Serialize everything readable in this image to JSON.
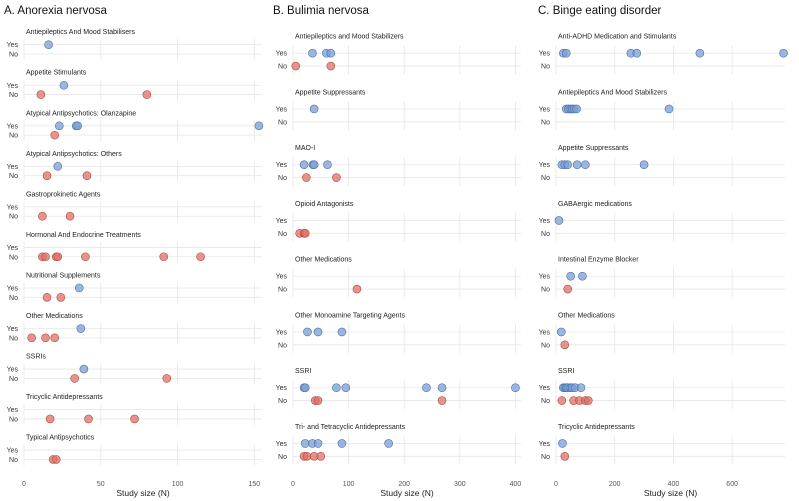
{
  "colors": {
    "yes": "#7b9fd4",
    "no": "#e06f66",
    "grid": "#e6e6e6"
  },
  "chart_data": [
    {
      "type": "scatter",
      "title": "A. Anorexia nervosa",
      "xlabel": "Study size (N)",
      "xlim": [
        0,
        155
      ],
      "xticks": [
        0,
        50,
        100,
        150
      ],
      "facets": [
        {
          "title": "Antiepileptics And Mood Stabilisers",
          "yes": [
            16
          ],
          "no": []
        },
        {
          "title": "Appetite Stimulants",
          "yes": [
            26
          ],
          "no": [
            11,
            80
          ]
        },
        {
          "title": "Atypical Antipsychotics: Olanzapine",
          "yes": [
            23,
            34,
            35,
            153
          ],
          "no": [
            20
          ]
        },
        {
          "title": "Atypical Antipsychotics: Others",
          "yes": [
            22
          ],
          "no": [
            15,
            41
          ]
        },
        {
          "title": "Gastroprokinetic Agents",
          "yes": [],
          "no": [
            12,
            30
          ]
        },
        {
          "title": "Hormonal And Endocrine Treatments",
          "yes": [],
          "no": [
            12,
            14,
            21,
            22,
            40,
            91,
            115
          ]
        },
        {
          "title": "Nutritional Supplements",
          "yes": [
            36
          ],
          "no": [
            15,
            24
          ]
        },
        {
          "title": "Other Medications",
          "yes": [
            37
          ],
          "no": [
            5,
            14,
            20
          ]
        },
        {
          "title": "SSRIs",
          "yes": [
            39
          ],
          "no": [
            33,
            93
          ]
        },
        {
          "title": "Tricyclic Antidepressants",
          "yes": [],
          "no": [
            17,
            42,
            72
          ]
        },
        {
          "title": "Typical Antipsychotics",
          "yes": [],
          "no": [
            19,
            21
          ]
        }
      ]
    },
    {
      "type": "scatter",
      "title": "B. Bulimia nervosa",
      "xlabel": "Study size (N)",
      "xlim": [
        0,
        410
      ],
      "xticks": [
        0,
        100,
        200,
        300,
        400
      ],
      "facets": [
        {
          "title": "Antiepileptics and Mood Stabilizers",
          "yes": [
            35,
            60,
            68
          ],
          "no": [
            5,
            68
          ]
        },
        {
          "title": "Appetite Suppressants",
          "yes": [
            38
          ],
          "no": []
        },
        {
          "title": "MAO-I",
          "yes": [
            20,
            36,
            38,
            62
          ],
          "no": [
            24,
            78
          ]
        },
        {
          "title": "Opioid Antagonists",
          "yes": [],
          "no": [
            12,
            20,
            22
          ]
        },
        {
          "title": "Other Medications",
          "yes": [],
          "no": [
            115
          ]
        },
        {
          "title": "Other Monoamine Targeting Agents",
          "yes": [
            26,
            45,
            88
          ],
          "no": []
        },
        {
          "title": "SSRI",
          "yes": [
            20,
            22,
            78,
            95,
            240,
            268,
            400
          ],
          "no": [
            40,
            45,
            268
          ]
        },
        {
          "title": "Tri- and Tetracyclic Antidepressants",
          "yes": [
            22,
            35,
            45,
            88,
            172
          ],
          "no": [
            20,
            25,
            38,
            50
          ]
        }
      ]
    },
    {
      "type": "scatter",
      "title": "C. Binge eating disorder",
      "xlabel": "Study size (N)",
      "xlim": [
        0,
        780
      ],
      "xticks": [
        0,
        200,
        400,
        600
      ],
      "facets": [
        {
          "title": "Anti-ADHD Medication and Stimulants",
          "yes": [
            25,
            35,
            255,
            275,
            490,
            775
          ],
          "no": []
        },
        {
          "title": "Antiepileptics And Mood Stabilizers",
          "yes": [
            35,
            42,
            50,
            55,
            62,
            70,
            385
          ],
          "no": []
        },
        {
          "title": "Appetite Suppressants",
          "yes": [
            20,
            30,
            40,
            72,
            100,
            300
          ],
          "no": []
        },
        {
          "title": "GABAergic medications",
          "yes": [
            10
          ],
          "no": []
        },
        {
          "title": "Intestinal Enzyme Blocker",
          "yes": [
            50,
            90
          ],
          "no": [
            40
          ]
        },
        {
          "title": "Other Medications",
          "yes": [
            18
          ],
          "no": [
            30
          ]
        },
        {
          "title": "SSRI",
          "yes": [
            25,
            30,
            35,
            40,
            50,
            55,
            65,
            85
          ],
          "no": [
            20,
            60,
            80,
            100,
            110
          ]
        },
        {
          "title": "Tricyclic Antidepressants",
          "yes": [
            22
          ],
          "no": [
            30
          ]
        }
      ]
    }
  ]
}
